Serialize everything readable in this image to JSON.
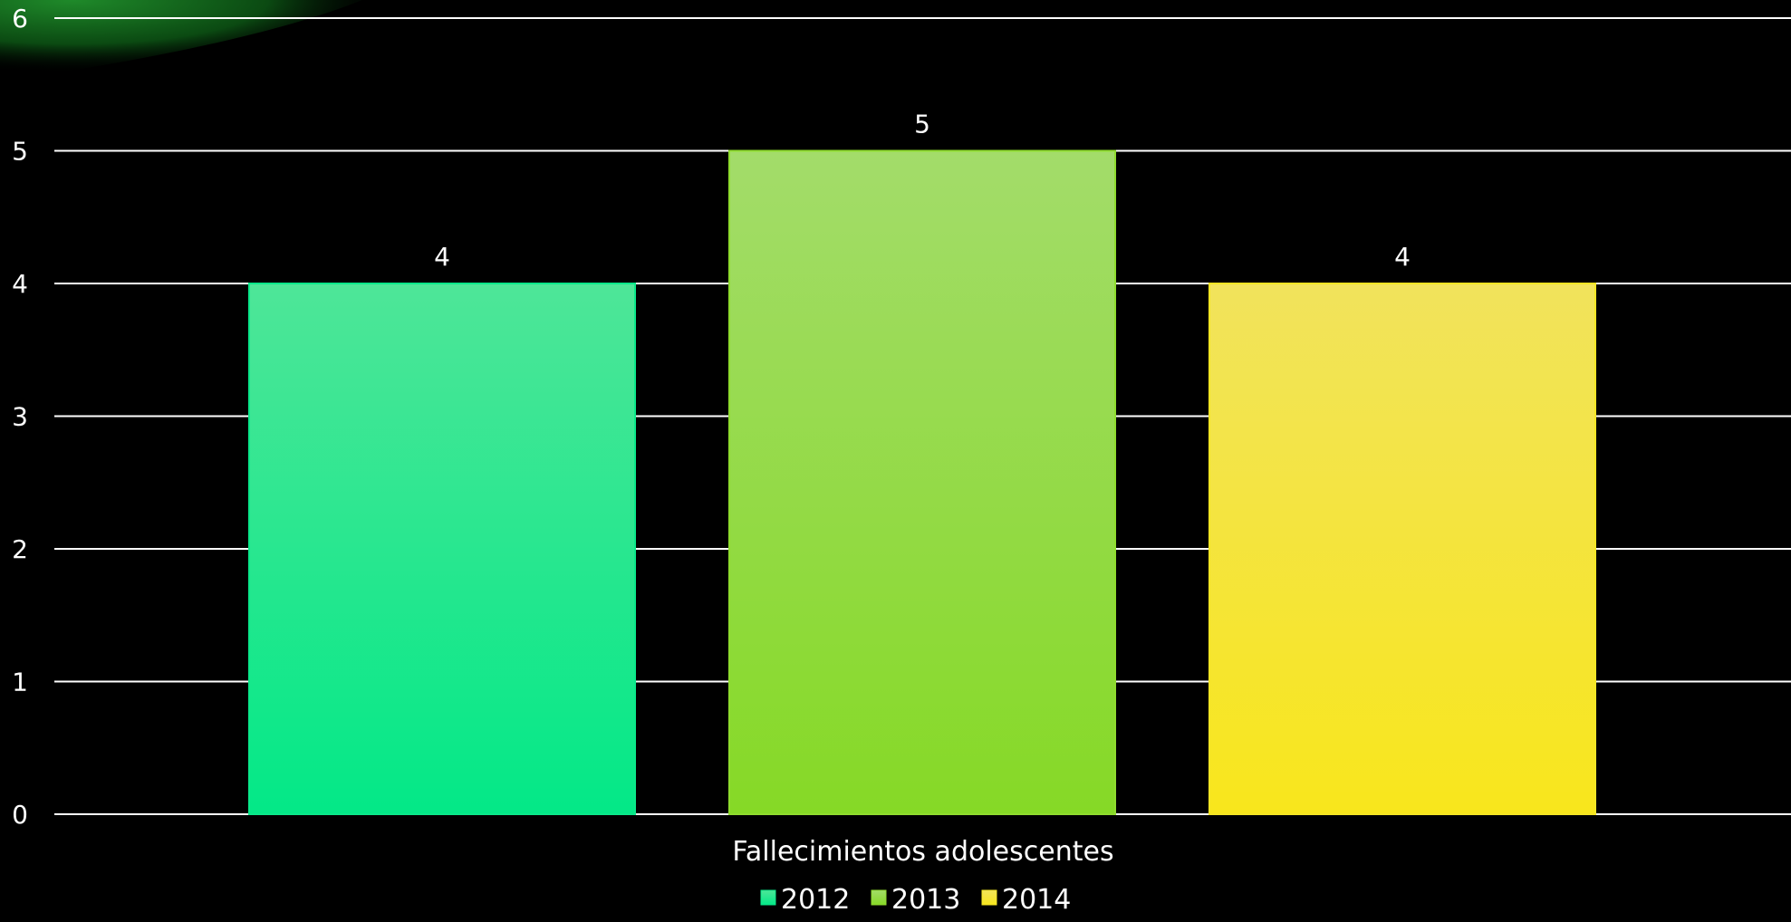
{
  "chart_data": {
    "type": "bar",
    "categories": [
      "Fallecimientos adolescentes"
    ],
    "series": [
      {
        "name": "2012",
        "values": [
          4
        ],
        "color": "#0ae88a"
      },
      {
        "name": "2013",
        "values": [
          5
        ],
        "color": "#8fdc2e"
      },
      {
        "name": "2014",
        "values": [
          4
        ],
        "color": "#f5e624"
      }
    ],
    "title": "",
    "xlabel": "",
    "ylabel": "",
    "ylim": [
      0,
      6
    ],
    "yticks": [
      "0",
      "1",
      "2",
      "3",
      "4",
      "5",
      "6"
    ],
    "grid": true,
    "legend_position": "bottom",
    "data_labels": true
  }
}
